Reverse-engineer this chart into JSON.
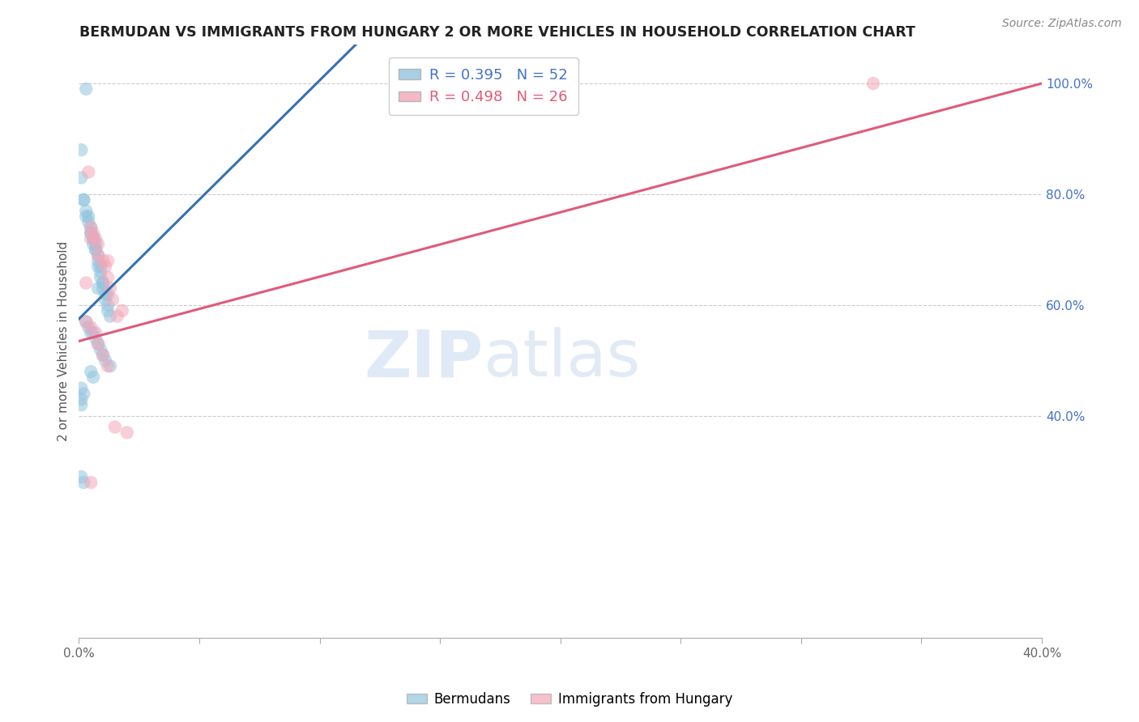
{
  "title": "BERMUDAN VS IMMIGRANTS FROM HUNGARY 2 OR MORE VEHICLES IN HOUSEHOLD CORRELATION CHART",
  "source": "Source: ZipAtlas.com",
  "ylabel": "2 or more Vehicles in Household",
  "xlim": [
    0.0,
    0.4
  ],
  "ylim": [
    0.0,
    1.07
  ],
  "x_ticks": [
    0.0,
    0.05,
    0.1,
    0.15,
    0.2,
    0.25,
    0.3,
    0.35,
    0.4
  ],
  "y_ticks_right": [
    0.4,
    0.6,
    0.8,
    1.0
  ],
  "y_tick_labels_right": [
    "40.0%",
    "60.0%",
    "80.0%",
    "100.0%"
  ],
  "blue_color": "#92c5de",
  "pink_color": "#f4a6b8",
  "blue_line_color": "#3572b0",
  "pink_line_color": "#e05a7a",
  "background_color": "#ffffff",
  "scatter_blue_x": [
    0.003,
    0.001,
    0.001,
    0.002,
    0.002,
    0.003,
    0.003,
    0.004,
    0.004,
    0.005,
    0.005,
    0.005,
    0.006,
    0.006,
    0.006,
    0.007,
    0.007,
    0.007,
    0.008,
    0.008,
    0.008,
    0.009,
    0.009,
    0.009,
    0.01,
    0.01,
    0.01,
    0.011,
    0.011,
    0.012,
    0.012,
    0.013,
    0.003,
    0.004,
    0.005,
    0.006,
    0.007,
    0.008,
    0.009,
    0.01,
    0.011,
    0.012,
    0.013,
    0.005,
    0.006,
    0.008,
    0.001,
    0.002,
    0.001,
    0.001,
    0.001,
    0.002
  ],
  "scatter_blue_y": [
    0.99,
    0.88,
    0.83,
    0.79,
    0.79,
    0.77,
    0.76,
    0.76,
    0.75,
    0.74,
    0.73,
    0.73,
    0.72,
    0.72,
    0.71,
    0.71,
    0.7,
    0.7,
    0.69,
    0.68,
    0.67,
    0.67,
    0.66,
    0.65,
    0.64,
    0.64,
    0.63,
    0.62,
    0.61,
    0.6,
    0.59,
    0.58,
    0.57,
    0.56,
    0.55,
    0.55,
    0.54,
    0.53,
    0.52,
    0.51,
    0.5,
    0.62,
    0.49,
    0.48,
    0.47,
    0.63,
    0.45,
    0.44,
    0.43,
    0.42,
    0.29,
    0.28
  ],
  "scatter_pink_x": [
    0.004,
    0.005,
    0.006,
    0.007,
    0.008,
    0.01,
    0.011,
    0.012,
    0.013,
    0.014,
    0.016,
    0.003,
    0.005,
    0.007,
    0.008,
    0.01,
    0.012,
    0.015,
    0.02,
    0.005,
    0.008,
    0.012,
    0.33,
    0.003,
    0.005,
    0.018
  ],
  "scatter_pink_y": [
    0.84,
    0.74,
    0.73,
    0.72,
    0.69,
    0.68,
    0.67,
    0.65,
    0.63,
    0.61,
    0.58,
    0.57,
    0.56,
    0.55,
    0.53,
    0.51,
    0.49,
    0.38,
    0.37,
    0.72,
    0.71,
    0.68,
    1.0,
    0.64,
    0.28,
    0.59
  ],
  "blue_trendline_x": [
    0.0,
    0.115
  ],
  "blue_trendline_y": [
    0.575,
    1.07
  ],
  "pink_trendline_x": [
    0.0,
    0.4
  ],
  "pink_trendline_y": [
    0.535,
    1.0
  ]
}
